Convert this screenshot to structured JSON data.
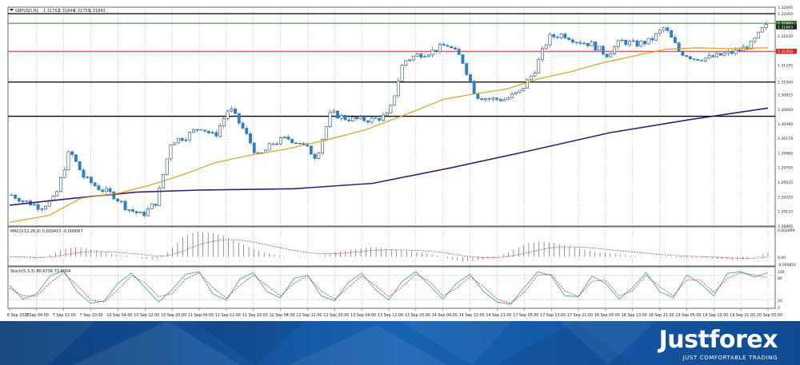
{
  "chart_data": [
    {
      "type": "candlestick",
      "title": "GBPUSD,H1",
      "header_values": [
        "1.31762",
        "1.31844",
        "1.31753",
        "1.31843"
      ],
      "price_axis": [
        "1.32000",
        "1.32095",
        "1.31670",
        "1.31245",
        "1.31000",
        "1.30815",
        "1.30600",
        "1.30390",
        "1.30179",
        "1.29960",
        "1.29750",
        "1.29535",
        "1.29320",
        "1.29110",
        "1.28895"
      ],
      "ylim": [
        1.28895,
        1.32095
      ],
      "markers": [
        {
          "label": "1.31860",
          "color": "#3b7a2e"
        },
        {
          "label": "1.31843",
          "color": "#222222"
        },
        {
          "label": "1.31450",
          "color": "#d8262a"
        }
      ],
      "hlines": [
        {
          "name": "top-resistance",
          "value": 1.32,
          "color": "#000000"
        },
        {
          "name": "green-level",
          "value": 1.3186,
          "color": "#3b7a2e"
        },
        {
          "name": "red-level",
          "value": 1.3145,
          "color": "#d8262a"
        },
        {
          "name": "support-1",
          "value": 1.31,
          "color": "#000000"
        },
        {
          "name": "support-2",
          "value": 1.305,
          "color": "#000000"
        }
      ],
      "time_labels": [
        "6 Sep 2018",
        "7 Sep 04:00",
        "7 Sep 12:00",
        "7 Sep 20:00",
        "10 Sep 04:00",
        "10 Sep 12:00",
        "10 Sep 20:00",
        "11 Sep 04:00",
        "11 Sep 12:00",
        "11 Sep 20:00",
        "12 Sep 04:00",
        "12 Sep 12:00",
        "12 Sep 20:00",
        "13 Sep 04:00",
        "13 Sep 12:00",
        "13 Sep 20:00",
        "14 Sep 04:00",
        "14 Sep 12:00",
        "14 Sep 21:00",
        "17 Sep 05:00",
        "17 Sep 13:00",
        "17 Sep 21:00",
        "18 Sep 05:00",
        "18 Sep 13:00",
        "18 Sep 21:00",
        "19 Sep 05:00",
        "19 Sep 13:00",
        "19 Sep 21:00",
        "20 Sep 05:00"
      ],
      "anchors": [
        1.2935,
        1.2925,
        1.2917,
        1.293,
        1.3,
        1.296,
        1.2945,
        1.2935,
        1.2915,
        1.2905,
        1.2925,
        1.3013,
        1.302,
        1.3035,
        1.302,
        1.3063,
        1.303,
        1.299,
        1.301,
        1.3018,
        1.301,
        1.299,
        1.3055,
        1.3047,
        1.3045,
        1.3045,
        1.3052,
        1.313,
        1.314,
        1.3145,
        1.3155,
        1.3135,
        1.308,
        1.3075,
        1.3075,
        1.3085,
        1.3115,
        1.3165,
        1.317,
        1.316,
        1.3155,
        1.314,
        1.316,
        1.3155,
        1.316,
        1.318,
        1.3145,
        1.3135,
        1.3135,
        1.314,
        1.3145,
        1.3155,
        1.31843
      ],
      "ma_slow_points": [
        [
          0,
          1.292
        ],
        [
          8,
          1.293
        ],
        [
          16,
          1.2939
        ],
        [
          24,
          1.2942
        ],
        [
          36,
          1.2944
        ],
        [
          46,
          1.2952
        ],
        [
          56,
          1.2975
        ],
        [
          66,
          1.3
        ],
        [
          76,
          1.3026
        ],
        [
          86,
          1.3045
        ],
        [
          96,
          1.3062
        ]
      ],
      "ma_fast_points": [
        [
          0,
          1.2895
        ],
        [
          5,
          1.2905
        ],
        [
          9,
          1.293
        ],
        [
          14,
          1.2938
        ],
        [
          18,
          1.295
        ],
        [
          22,
          1.2965
        ],
        [
          26,
          1.2982
        ],
        [
          30,
          1.2992
        ],
        [
          35,
          1.3002
        ],
        [
          40,
          1.3015
        ],
        [
          45,
          1.303
        ],
        [
          50,
          1.3052
        ],
        [
          55,
          1.3075
        ],
        [
          59,
          1.3083
        ],
        [
          63,
          1.309
        ],
        [
          67,
          1.3105
        ],
        [
          71,
          1.3115
        ],
        [
          75,
          1.3128
        ],
        [
          79,
          1.3138
        ],
        [
          83,
          1.3148
        ],
        [
          87,
          1.315
        ],
        [
          91,
          1.3149
        ],
        [
          96,
          1.315
        ]
      ],
      "xlabel": "",
      "ylabel": ""
    },
    {
      "type": "bar",
      "title": "MACD(12,26,9) 0.000410 -0.000067",
      "axis": [
        "0.002894",
        "0.00",
        "-0.000851"
      ],
      "histogram": [
        0.0,
        -0.0001,
        -0.0002,
        0.0002,
        0.0008,
        0.001,
        0.0008,
        0.0005,
        0.0002,
        0.0001,
        -0.0002,
        -0.0003,
        0.0006,
        0.002,
        0.0026,
        0.0025,
        0.0022,
        0.0016,
        0.001,
        0.0005,
        0.0002,
        0.0,
        -0.0001,
        0.0,
        0.0003,
        0.0006,
        0.0008,
        0.001,
        0.0009,
        0.0007,
        0.0006,
        0.0004,
        0.0002,
        -0.0002,
        -0.0005,
        -0.0004,
        -0.0002,
        0.0002,
        0.0008,
        0.0014,
        0.0016,
        0.0014,
        0.0011,
        0.0008,
        0.0005,
        0.0004,
        0.0002,
        0.0001,
        0.0,
        -0.0001,
        -0.0001,
        -0.0001,
        -0.0001,
        -0.0002,
        -0.0003,
        -0.0003,
        0.0,
        0.0004
      ]
    },
    {
      "type": "line",
      "title": "Stoch(5,3,3) 86.6736 73.8004",
      "axis": [
        "100",
        "80",
        "20",
        "0"
      ],
      "k_values": [
        55,
        22,
        35,
        78,
        90,
        40,
        12,
        18,
        60,
        85,
        50,
        15,
        45,
        82,
        88,
        35,
        20,
        70,
        86,
        40,
        25,
        72,
        80,
        30,
        18,
        62,
        85,
        45,
        20,
        65,
        88,
        55,
        22,
        60,
        82,
        40,
        15,
        10,
        50,
        88,
        78,
        30,
        28,
        78,
        60,
        22,
        50,
        86,
        40,
        25,
        80,
        60,
        30,
        84,
        88,
        75,
        86
      ],
      "d_values": [
        48,
        30,
        30,
        62,
        85,
        55,
        20,
        15,
        45,
        78,
        62,
        28,
        35,
        70,
        86,
        50,
        25,
        55,
        80,
        55,
        30,
        60,
        78,
        42,
        22,
        50,
        78,
        55,
        28,
        52,
        82,
        65,
        30,
        48,
        76,
        52,
        22,
        12,
        38,
        80,
        82,
        42,
        28,
        65,
        68,
        30,
        42,
        80,
        52,
        30,
        68,
        68,
        38,
        72,
        86,
        80,
        74
      ]
    }
  ],
  "branding": {
    "name": "Justforex",
    "tagline": "JUST COMFORTABLE TRADING"
  }
}
